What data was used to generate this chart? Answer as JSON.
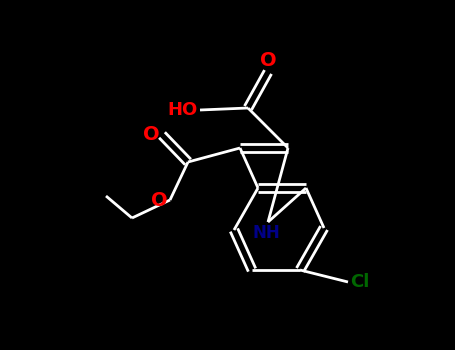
{
  "background_color": "#000000",
  "line_color": "#ffffff",
  "bond_width": 2.0,
  "figsize": [
    4.55,
    3.5
  ],
  "dpi": 100,
  "xlim": [
    0,
    455
  ],
  "ylim": [
    0,
    350
  ]
}
